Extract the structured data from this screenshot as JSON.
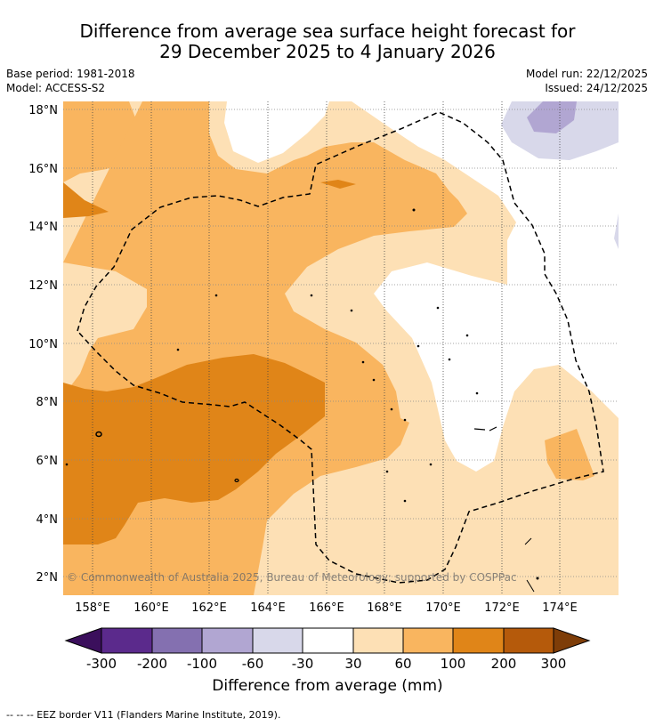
{
  "title": {
    "line1": "Difference from average sea surface height forecast for",
    "line2": "29 December 2025 to 4 January 2026"
  },
  "meta": {
    "base_period": "Base period: 1981-2018",
    "model": "Model: ACCESS-S2",
    "model_run": "Model run: 22/12/2025",
    "issued": "Issued: 24/12/2025"
  },
  "map": {
    "lat_labels": [
      "18°N",
      "16°N",
      "14°N",
      "12°N",
      "10°N",
      "8°N",
      "6°N",
      "4°N",
      "2°N"
    ],
    "lon_labels": [
      "158°E",
      "160°E",
      "162°E",
      "164°E",
      "166°E",
      "168°E",
      "170°E",
      "172°E",
      "174°E"
    ],
    "copyright": "© Commonwealth of Australia 2025, Bureau of Meteorology; supported by COSPPac"
  },
  "colorbar": {
    "ticks": [
      "-300",
      "-200",
      "-100",
      "-60",
      "-30",
      "30",
      "60",
      "100",
      "200",
      "300"
    ],
    "colors": [
      "#5b2a8c",
      "#8470b0",
      "#b1a6d2",
      "#d8d8ea",
      "#ffffff",
      "#fde0b5",
      "#f9b55f",
      "#e08518",
      "#b55a0b"
    ],
    "under_color": "#3b0f5c",
    "over_color": "#7e3d08",
    "label": "Difference from average (mm)"
  },
  "footer": "--  --  -- EEZ border V11 (Flanders Marine Institute, 2019)."
}
